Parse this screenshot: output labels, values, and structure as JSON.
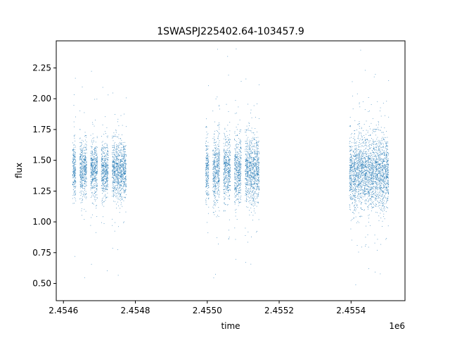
{
  "chart_data": {
    "type": "scatter",
    "title": "1SWASPJ225402.64-103457.9",
    "xlabel": "time",
    "ylabel": "flux",
    "x_offset_label": "1e6",
    "xlim": [
      2.45458,
      2.45555
    ],
    "ylim": [
      0.36,
      2.47
    ],
    "x_ticks": [
      2.4546,
      2.4548,
      2.455,
      2.4552,
      2.4554
    ],
    "x_tick_labels": [
      "2.4546",
      "2.4548",
      "2.4550",
      "2.4552",
      "2.4554"
    ],
    "y_ticks": [
      0.5,
      0.75,
      1.0,
      1.25,
      1.5,
      1.75,
      2.0,
      2.25
    ],
    "y_tick_labels": [
      "0.50",
      "0.75",
      "1.00",
      "1.25",
      "1.50",
      "1.75",
      "2.00",
      "2.25"
    ],
    "marker_color": "#1f77b4",
    "grid": false,
    "legend": "none",
    "observing_seasons": [
      {
        "x_start": 2.45463,
        "x_end": 2.45478,
        "flux_center": 1.42,
        "flux_spread": 0.11,
        "nights": [
          2.45463,
          2.45465,
          2.45466,
          2.45468,
          2.45469,
          2.45471,
          2.45472,
          2.45474,
          2.45475,
          2.45476,
          2.45477
        ]
      },
      {
        "x_start": 2.455,
        "x_end": 2.45514,
        "flux_center": 1.42,
        "flux_spread": 0.13,
        "nights": [
          2.455,
          2.45502,
          2.45503,
          2.45505,
          2.45506,
          2.45508,
          2.45509,
          2.45511,
          2.45512,
          2.45513,
          2.45514
        ]
      },
      {
        "x_start": 2.4554,
        "x_end": 2.4555,
        "flux_center": 1.4,
        "flux_spread": 0.14,
        "nights": [
          2.4554,
          2.45541,
          2.45542,
          2.45543,
          2.45544,
          2.45545,
          2.45546,
          2.45547,
          2.45548,
          2.45549,
          2.4555
        ]
      }
    ]
  }
}
